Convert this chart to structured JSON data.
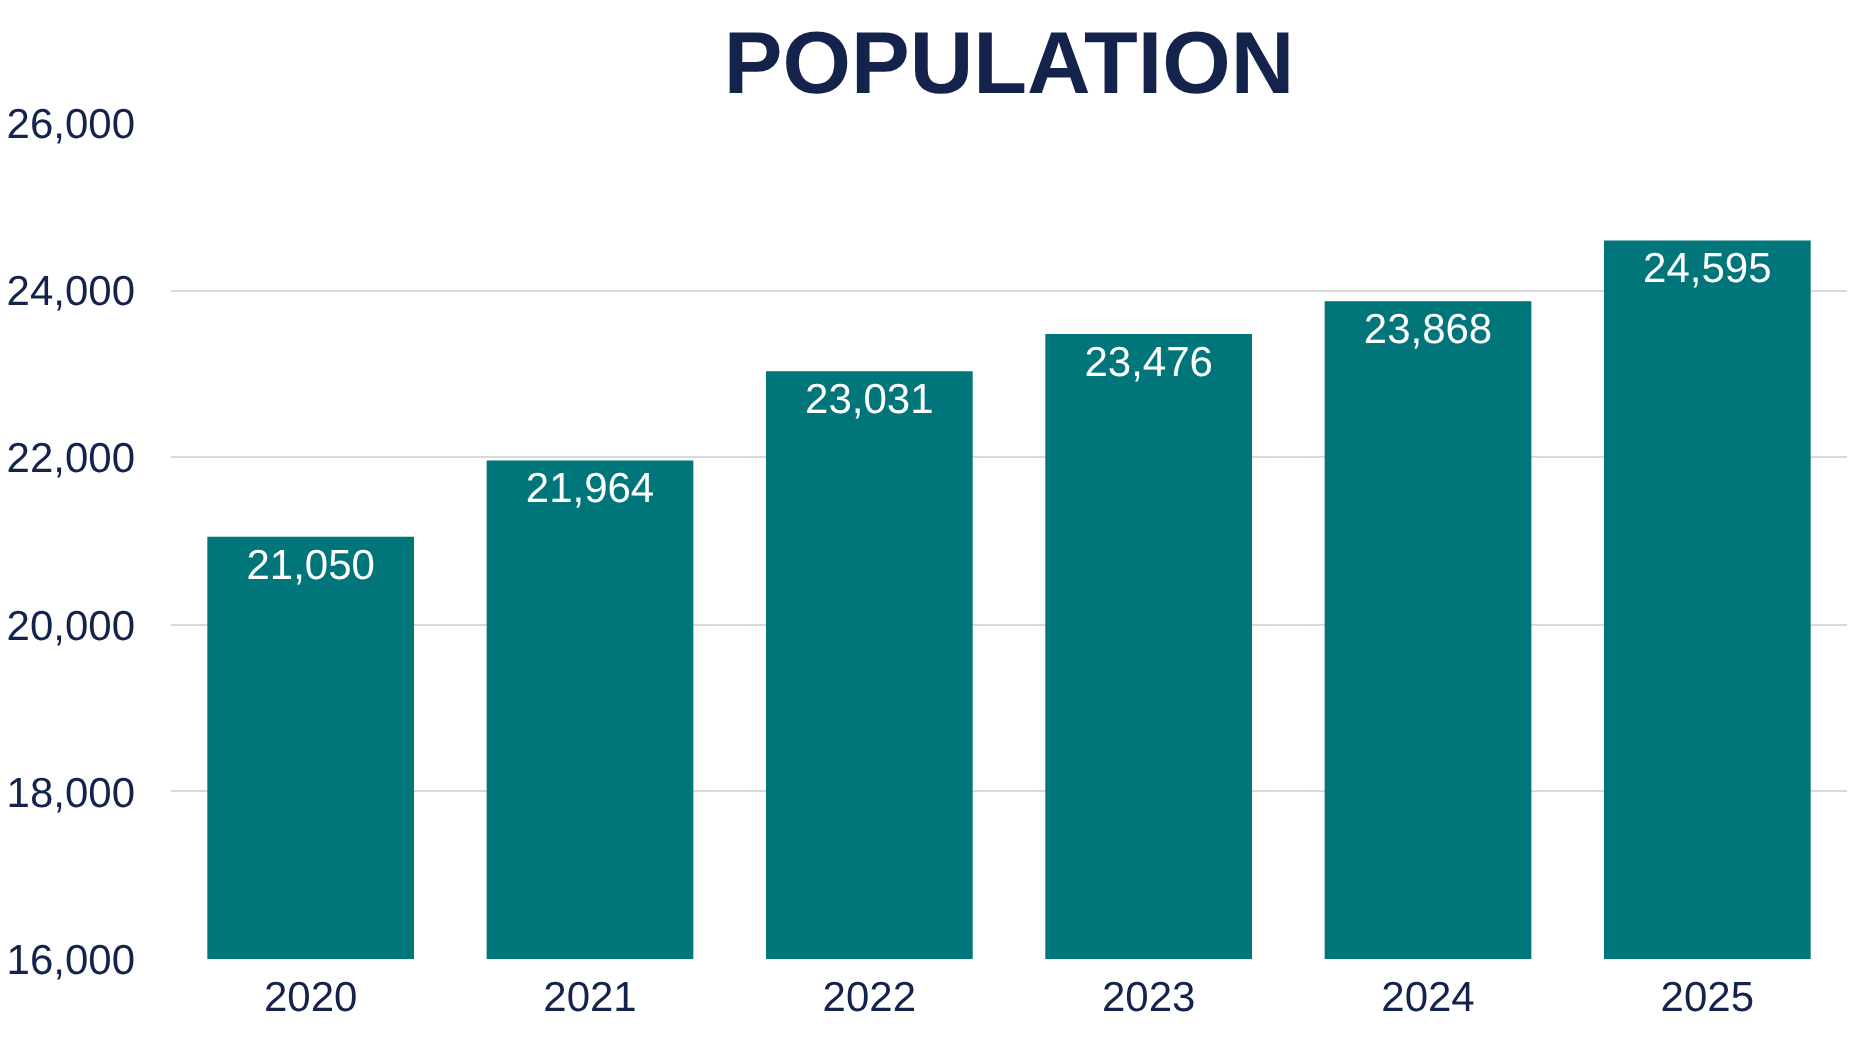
{
  "chart_data": {
    "type": "bar",
    "title": "POPULATION",
    "categories": [
      "2020",
      "2021",
      "2022",
      "2023",
      "2024",
      "2025"
    ],
    "values": [
      21050,
      21964,
      23031,
      23476,
      23868,
      24595
    ],
    "color": "#00757a",
    "ylim": [
      16000,
      26000
    ],
    "yticks": [
      {
        "value": 16000,
        "label": "16,000"
      },
      {
        "value": 18000,
        "label": "18,000"
      },
      {
        "value": 20000,
        "label": "20,000"
      },
      {
        "value": 22000,
        "label": "22,000"
      },
      {
        "value": 24000,
        "label": "24,000"
      },
      {
        "value": 26000,
        "label": "26,000"
      }
    ],
    "value_labels": [
      "21,050",
      "21,964",
      "23,031",
      "23,476",
      "23,868",
      "24,595"
    ],
    "grid": "y"
  }
}
